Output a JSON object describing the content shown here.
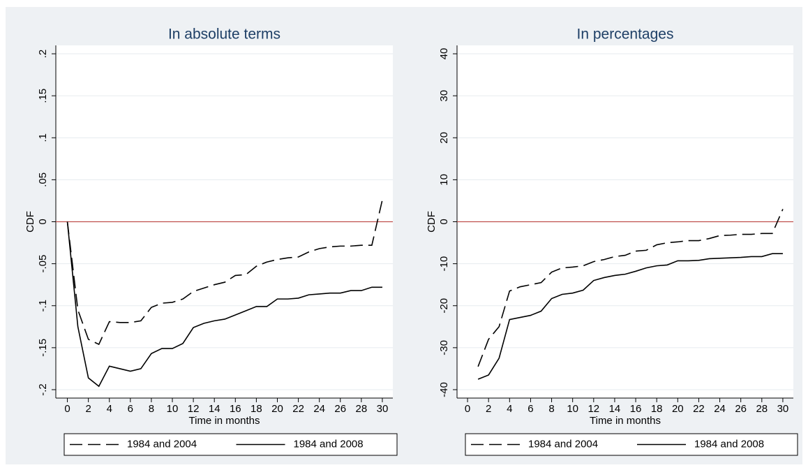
{
  "chart_data": [
    {
      "type": "line",
      "title": "In absolute terms",
      "xlabel": "Time in months",
      "ylabel": "CDF",
      "x": [
        0,
        1,
        2,
        3,
        4,
        5,
        6,
        7,
        8,
        9,
        10,
        11,
        12,
        13,
        14,
        15,
        16,
        17,
        18,
        19,
        20,
        21,
        22,
        23,
        24,
        25,
        26,
        27,
        28,
        29,
        30
      ],
      "series": [
        {
          "name": "1984 and 2004",
          "color": "#000000",
          "dash": "dashed",
          "values": [
            0,
            -0.105,
            -0.14,
            -0.146,
            -0.119,
            -0.12,
            -0.12,
            -0.118,
            -0.102,
            -0.097,
            -0.096,
            -0.092,
            -0.083,
            -0.079,
            -0.075,
            -0.072,
            -0.064,
            -0.063,
            -0.053,
            -0.048,
            -0.045,
            -0.043,
            -0.042,
            -0.036,
            -0.032,
            -0.03,
            -0.029,
            -0.029,
            -0.028,
            -0.028,
            0.026
          ]
        },
        {
          "name": "1984 and 2008",
          "color": "#000000",
          "dash": "solid",
          "values": [
            0,
            -0.125,
            -0.186,
            -0.196,
            -0.172,
            -0.175,
            -0.178,
            -0.175,
            -0.157,
            -0.151,
            -0.151,
            -0.145,
            -0.126,
            -0.121,
            -0.118,
            -0.116,
            -0.111,
            -0.106,
            -0.101,
            -0.101,
            -0.092,
            -0.092,
            -0.091,
            -0.087,
            -0.086,
            -0.085,
            -0.085,
            -0.082,
            -0.082,
            -0.078,
            -0.078
          ]
        }
      ],
      "xlim": [
        -1.1,
        31
      ],
      "ylim": [
        -0.21,
        0.21
      ],
      "xticks": [
        0,
        2,
        4,
        6,
        8,
        10,
        12,
        14,
        16,
        18,
        20,
        22,
        24,
        26,
        28,
        30
      ],
      "yticks": [
        {
          "value": -0.2,
          "label": "-.2"
        },
        {
          "value": -0.15,
          "label": "-.15"
        },
        {
          "value": -0.1,
          "label": "-.1"
        },
        {
          "value": -0.05,
          "label": "-.05"
        },
        0,
        {
          "value": 0.05,
          "label": ".05"
        },
        {
          "value": 0.1,
          "label": ".1"
        },
        {
          "value": 0.15,
          "label": ".15"
        },
        {
          "value": 0.2,
          "label": ".2"
        }
      ],
      "grid": true,
      "reference_line": {
        "value": 0,
        "color": "#c0504d"
      },
      "legend": "bottom"
    },
    {
      "type": "line",
      "title": "In percentages",
      "xlabel": "Time in months",
      "ylabel": "CDF",
      "x": [
        1,
        2,
        3,
        4,
        5,
        6,
        7,
        8,
        9,
        10,
        11,
        12,
        13,
        14,
        15,
        16,
        17,
        18,
        19,
        20,
        21,
        22,
        23,
        24,
        25,
        26,
        27,
        28,
        29,
        30
      ],
      "series": [
        {
          "name": "1984 and 2004",
          "color": "#000000",
          "dash": "dashed",
          "values": [
            -34.5,
            -28,
            -25,
            -16.5,
            -15.5,
            -15,
            -14.5,
            -12,
            -11,
            -10.8,
            -10.5,
            -9.5,
            -9,
            -8.3,
            -8,
            -7,
            -6.8,
            -5.5,
            -5,
            -4.8,
            -4.5,
            -4.5,
            -4,
            -3.3,
            -3.2,
            -3,
            -3,
            -2.8,
            -2.8,
            3
          ]
        },
        {
          "name": "1984 and 2008",
          "color": "#000000",
          "dash": "solid",
          "values": [
            -37.5,
            -36.5,
            -32.5,
            -23.3,
            -22.8,
            -22.3,
            -21.3,
            -18.3,
            -17.3,
            -17,
            -16.3,
            -14,
            -13.3,
            -12.8,
            -12.5,
            -11.8,
            -11,
            -10.5,
            -10.3,
            -9.3,
            -9.3,
            -9.2,
            -8.8,
            -8.7,
            -8.6,
            -8.5,
            -8.3,
            -8.3,
            -7.6,
            -7.6
          ]
        }
      ],
      "xlim": [
        -1,
        31
      ],
      "ylim": [
        -42,
        42
      ],
      "xticks": [
        0,
        2,
        4,
        6,
        8,
        10,
        12,
        14,
        16,
        18,
        20,
        22,
        24,
        26,
        28,
        30
      ],
      "yticks": [
        -40,
        -30,
        -20,
        -10,
        0,
        10,
        20,
        30,
        40
      ],
      "grid": true,
      "reference_line": {
        "value": 0,
        "color": "#c0504d"
      },
      "legend": "bottom"
    }
  ]
}
